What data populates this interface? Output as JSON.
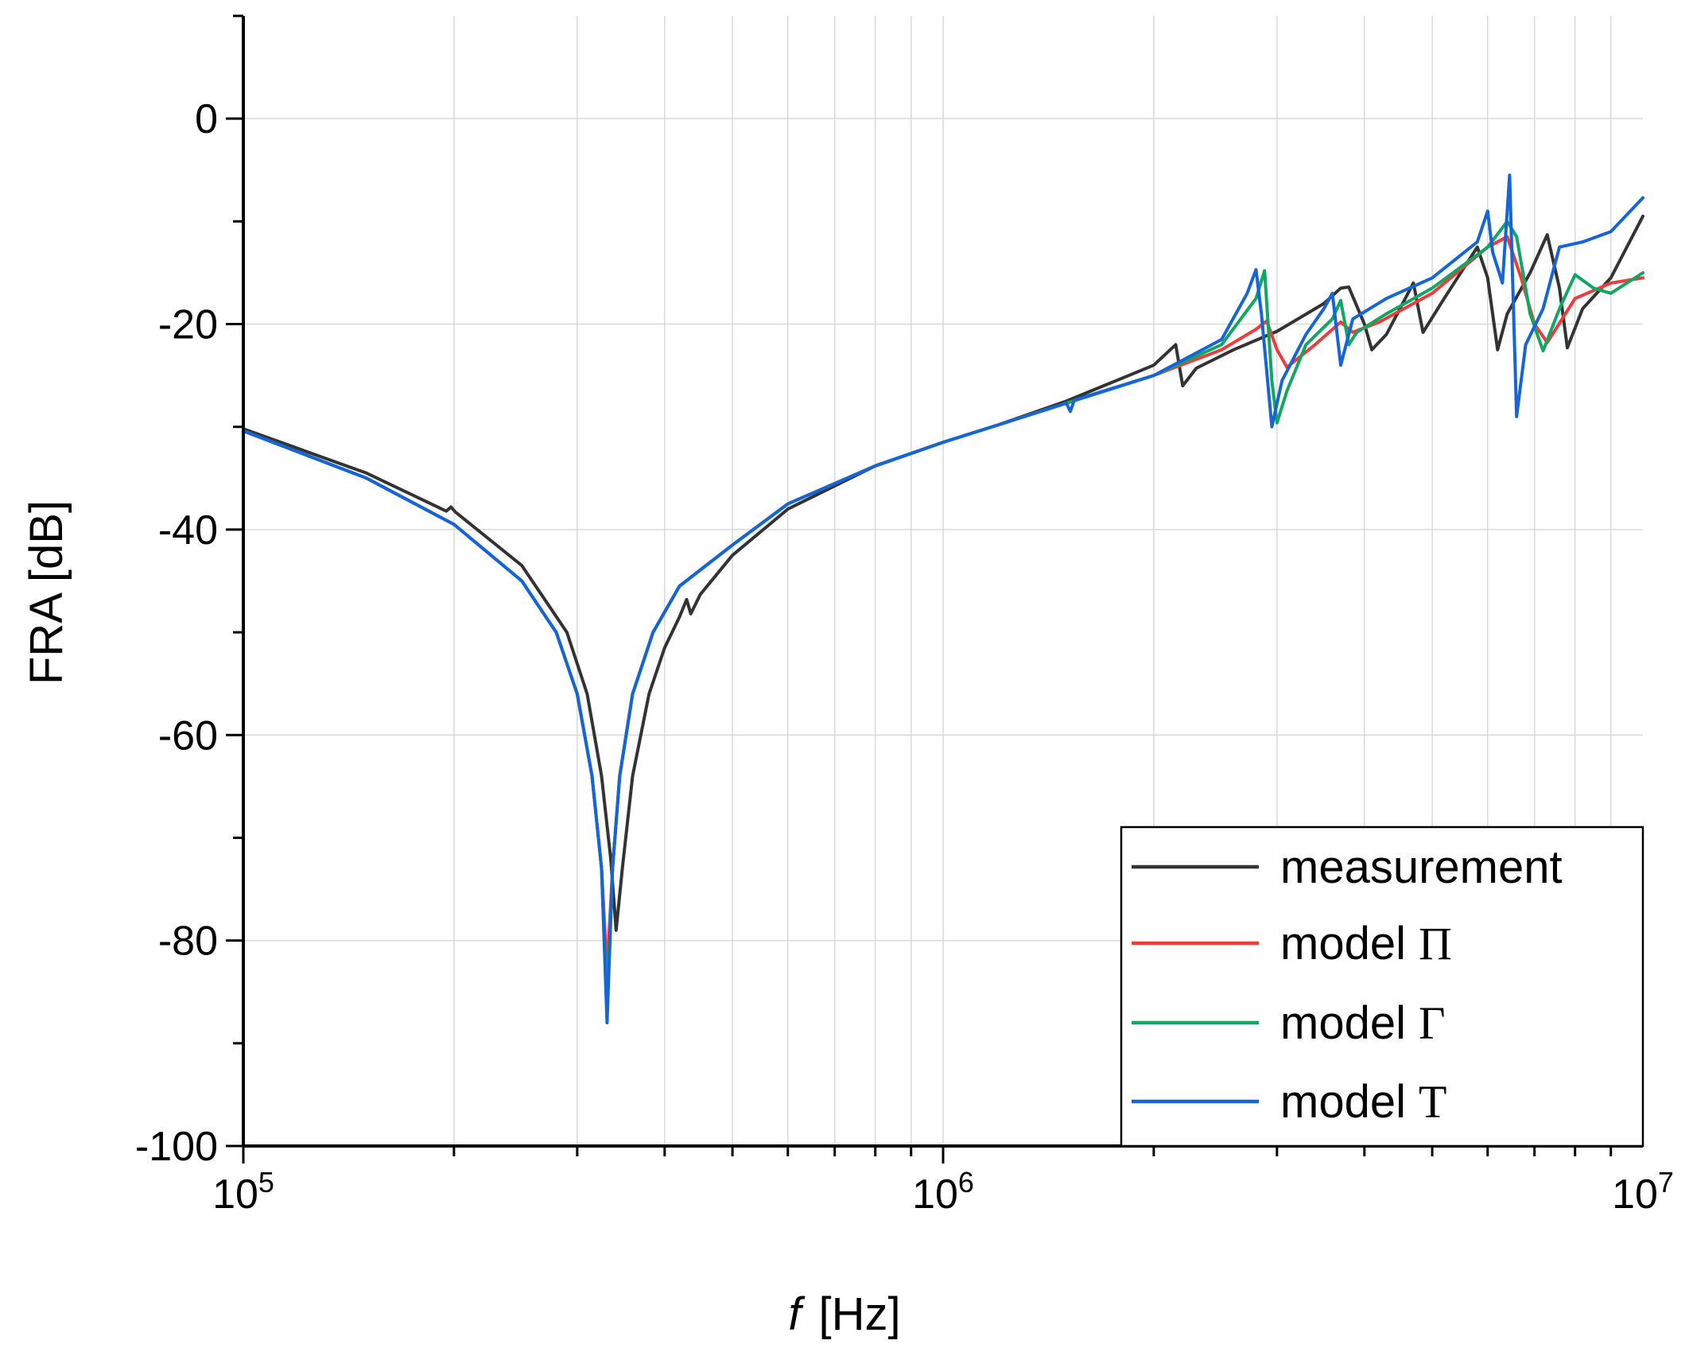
{
  "chart_data": {
    "type": "line",
    "x_scale": "log",
    "xlabel_var": "f",
    "xlabel_unit": "[Hz]",
    "ylabel": "FRA [dB]",
    "xlim": [
      100000,
      10000000
    ],
    "ylim": [
      -100,
      10
    ],
    "grid": true,
    "legend_position": "bottom-right",
    "y_ticks": [
      0,
      -20,
      -40,
      -60,
      -80,
      -100
    ],
    "y_tick_labels": [
      "0",
      "-20",
      "-40",
      "-60",
      "-80",
      "-100"
    ],
    "x_ticks": [
      {
        "value": 100000,
        "base": "10",
        "exp": "5"
      },
      {
        "value": 1000000,
        "base": "10",
        "exp": "6"
      },
      {
        "value": 10000000,
        "base": "10",
        "exp": "7"
      }
    ],
    "series": [
      {
        "name": "measurement",
        "label_text": "measurement",
        "label_symbol": "",
        "color": "#333333",
        "points": [
          [
            100000,
            -30.2
          ],
          [
            150000,
            -34.5
          ],
          [
            195000,
            -38.2
          ],
          [
            198000,
            -37.8
          ],
          [
            201000,
            -38.3
          ],
          [
            250000,
            -43.5
          ],
          [
            290000,
            -50.0
          ],
          [
            310000,
            -56.0
          ],
          [
            325000,
            -64.0
          ],
          [
            335000,
            -72.0
          ],
          [
            341000,
            -79.0
          ],
          [
            348000,
            -73.0
          ],
          [
            360000,
            -64.0
          ],
          [
            380000,
            -56.0
          ],
          [
            400000,
            -51.5
          ],
          [
            420000,
            -48.5
          ],
          [
            430000,
            -46.8
          ],
          [
            436000,
            -48.2
          ],
          [
            450000,
            -46.3
          ],
          [
            500000,
            -42.5
          ],
          [
            600000,
            -38.0
          ],
          [
            800000,
            -33.8
          ],
          [
            1000000,
            -31.5
          ],
          [
            1200000,
            -29.8
          ],
          [
            1500000,
            -27.5
          ],
          [
            2000000,
            -24.0
          ],
          [
            2150000,
            -22.0
          ],
          [
            2200000,
            -26.0
          ],
          [
            2300000,
            -24.3
          ],
          [
            2600000,
            -22.5
          ],
          [
            3000000,
            -20.7
          ],
          [
            3500000,
            -18.0
          ],
          [
            3700000,
            -16.5
          ],
          [
            3800000,
            -16.4
          ],
          [
            4000000,
            -20.0
          ],
          [
            4100000,
            -22.5
          ],
          [
            4300000,
            -21.0
          ],
          [
            4700000,
            -16.0
          ],
          [
            4850000,
            -20.8
          ],
          [
            5200000,
            -17.5
          ],
          [
            5800000,
            -12.5
          ],
          [
            6000000,
            -15.5
          ],
          [
            6200000,
            -22.5
          ],
          [
            6400000,
            -19.0
          ],
          [
            6900000,
            -15.0
          ],
          [
            7300000,
            -11.3
          ],
          [
            7600000,
            -16.5
          ],
          [
            7800000,
            -22.3
          ],
          [
            8200000,
            -18.5
          ],
          [
            9000000,
            -15.5
          ],
          [
            10000000,
            -9.5
          ]
        ]
      },
      {
        "name": "model Π",
        "label_text": "model",
        "label_symbol": "Π",
        "color": "#ef3b3b",
        "points": [
          [
            100000,
            -30.4
          ],
          [
            150000,
            -35.0
          ],
          [
            200000,
            -39.5
          ],
          [
            250000,
            -45.0
          ],
          [
            280000,
            -50.0
          ],
          [
            300000,
            -56.0
          ],
          [
            315000,
            -64.0
          ],
          [
            325000,
            -73.0
          ],
          [
            331000,
            -83.0
          ],
          [
            337000,
            -73.0
          ],
          [
            345000,
            -64.0
          ],
          [
            360000,
            -56.0
          ],
          [
            385000,
            -50.0
          ],
          [
            420000,
            -45.5
          ],
          [
            500000,
            -41.5
          ],
          [
            600000,
            -37.5
          ],
          [
            800000,
            -33.8
          ],
          [
            1000000,
            -31.5
          ],
          [
            1200000,
            -29.8
          ],
          [
            1500000,
            -27.7
          ],
          [
            2000000,
            -25.0
          ],
          [
            2500000,
            -22.5
          ],
          [
            2800000,
            -20.5
          ],
          [
            2900000,
            -19.7
          ],
          [
            3000000,
            -22.5
          ],
          [
            3100000,
            -24.2
          ],
          [
            3400000,
            -22.0
          ],
          [
            3700000,
            -19.8
          ],
          [
            3850000,
            -20.8
          ],
          [
            4200000,
            -19.8
          ],
          [
            5000000,
            -17.0
          ],
          [
            6000000,
            -12.5
          ],
          [
            6400000,
            -11.5
          ],
          [
            6700000,
            -15.5
          ],
          [
            7000000,
            -20.0
          ],
          [
            7300000,
            -21.8
          ],
          [
            8000000,
            -17.5
          ],
          [
            9000000,
            -16.0
          ],
          [
            10000000,
            -15.5
          ]
        ]
      },
      {
        "name": "model Γ",
        "label_text": "model",
        "label_symbol": "Γ",
        "color": "#11a661",
        "points": [
          [
            100000,
            -30.4
          ],
          [
            150000,
            -35.0
          ],
          [
            200000,
            -39.5
          ],
          [
            250000,
            -45.0
          ],
          [
            280000,
            -50.0
          ],
          [
            300000,
            -56.0
          ],
          [
            315000,
            -64.0
          ],
          [
            325000,
            -73.0
          ],
          [
            331000,
            -86.5
          ],
          [
            337000,
            -73.0
          ],
          [
            345000,
            -64.0
          ],
          [
            360000,
            -56.0
          ],
          [
            385000,
            -50.0
          ],
          [
            420000,
            -45.5
          ],
          [
            500000,
            -41.5
          ],
          [
            600000,
            -37.5
          ],
          [
            800000,
            -33.8
          ],
          [
            1000000,
            -31.5
          ],
          [
            1200000,
            -29.8
          ],
          [
            1500000,
            -27.7
          ],
          [
            2000000,
            -25.0
          ],
          [
            2500000,
            -22.0
          ],
          [
            2800000,
            -17.5
          ],
          [
            2880000,
            -14.8
          ],
          [
            2950000,
            -25.5
          ],
          [
            3000000,
            -29.6
          ],
          [
            3100000,
            -26.5
          ],
          [
            3300000,
            -22.0
          ],
          [
            3600000,
            -19.5
          ],
          [
            3700000,
            -17.7
          ],
          [
            3800000,
            -22.0
          ],
          [
            3900000,
            -20.8
          ],
          [
            4300000,
            -19.0
          ],
          [
            5000000,
            -16.5
          ],
          [
            6000000,
            -12.5
          ],
          [
            6400000,
            -10.0
          ],
          [
            6600000,
            -11.5
          ],
          [
            6900000,
            -19.0
          ],
          [
            7200000,
            -22.6
          ],
          [
            7600000,
            -18.5
          ],
          [
            8000000,
            -15.2
          ],
          [
            8500000,
            -16.5
          ],
          [
            9000000,
            -17.0
          ],
          [
            10000000,
            -15.0
          ]
        ]
      },
      {
        "name": "model T",
        "label_text": "model",
        "label_symbol": "Τ",
        "color": "#1565d8",
        "points": [
          [
            100000,
            -30.4
          ],
          [
            150000,
            -35.0
          ],
          [
            200000,
            -39.5
          ],
          [
            250000,
            -45.0
          ],
          [
            280000,
            -50.0
          ],
          [
            300000,
            -56.0
          ],
          [
            315000,
            -64.0
          ],
          [
            325000,
            -73.0
          ],
          [
            331000,
            -88.0
          ],
          [
            337000,
            -73.0
          ],
          [
            345000,
            -64.0
          ],
          [
            360000,
            -56.0
          ],
          [
            385000,
            -50.0
          ],
          [
            420000,
            -45.5
          ],
          [
            500000,
            -41.5
          ],
          [
            600000,
            -37.5
          ],
          [
            800000,
            -33.8
          ],
          [
            1000000,
            -31.5
          ],
          [
            1200000,
            -29.8
          ],
          [
            1500000,
            -27.7
          ],
          [
            1520000,
            -28.5
          ],
          [
            1540000,
            -27.4
          ],
          [
            2000000,
            -25.0
          ],
          [
            2500000,
            -21.5
          ],
          [
            2720000,
            -17.0
          ],
          [
            2800000,
            -14.7
          ],
          [
            2850000,
            -19.0
          ],
          [
            2950000,
            -30.0
          ],
          [
            3050000,
            -25.5
          ],
          [
            3300000,
            -21.0
          ],
          [
            3500000,
            -18.5
          ],
          [
            3600000,
            -17.0
          ],
          [
            3700000,
            -24.0
          ],
          [
            3850000,
            -19.5
          ],
          [
            4300000,
            -17.5
          ],
          [
            5000000,
            -15.5
          ],
          [
            5800000,
            -12.0
          ],
          [
            6000000,
            -9.0
          ],
          [
            6100000,
            -13.0
          ],
          [
            6300000,
            -16.0
          ],
          [
            6450000,
            -5.5
          ],
          [
            6600000,
            -29.0
          ],
          [
            6800000,
            -22.0
          ],
          [
            7200000,
            -18.5
          ],
          [
            7600000,
            -12.5
          ],
          [
            8200000,
            -12.0
          ],
          [
            9000000,
            -11.0
          ],
          [
            10000000,
            -7.7
          ]
        ]
      }
    ]
  }
}
